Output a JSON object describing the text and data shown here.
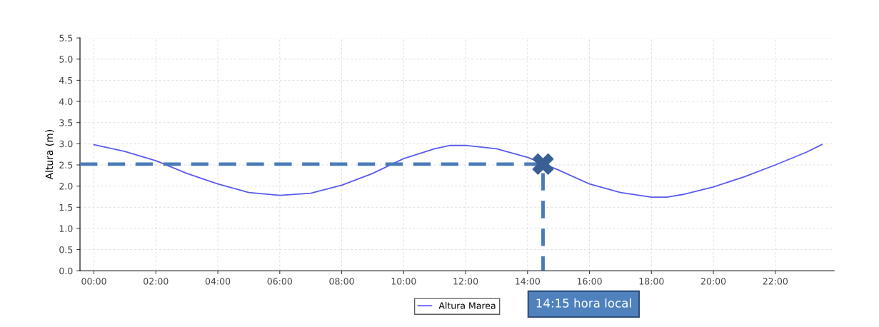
{
  "chart_data": {
    "type": "line",
    "ylabel": "Altura (m)",
    "series": [
      {
        "name": "Altura Marea",
        "color": "#5b5bee",
        "x": [
          0,
          1,
          2,
          3,
          4,
          5,
          6,
          7,
          8,
          9,
          10,
          11,
          11.5,
          12,
          13,
          14,
          15,
          16,
          17,
          18,
          18.5,
          19,
          20,
          21,
          22,
          23,
          23.5
        ],
        "values": [
          2.98,
          2.82,
          2.6,
          2.3,
          2.05,
          1.85,
          1.78,
          1.83,
          2.02,
          2.3,
          2.65,
          2.88,
          2.96,
          2.96,
          2.88,
          2.68,
          2.38,
          2.05,
          1.85,
          1.74,
          1.74,
          1.8,
          1.98,
          2.22,
          2.5,
          2.8,
          2.98
        ]
      },
      {
        "type": "line",
        "line_style": "dashed",
        "color": "#4a7ab8",
        "x": [
          -0.45,
          14.5,
          14.5
        ],
        "values": [
          2.52,
          2.52,
          0
        ]
      },
      {
        "type": "scatter",
        "marker": "cross",
        "color": "#3a5f94",
        "x": [
          14.5
        ],
        "values": [
          2.52
        ]
      }
    ],
    "xlim": [
      -0.45,
      23.9
    ],
    "ylim": [
      0,
      5.5
    ],
    "xticks": [
      {
        "value": 0,
        "label": "00:00"
      },
      {
        "value": 2,
        "label": "02:00"
      },
      {
        "value": 4,
        "label": "04:00"
      },
      {
        "value": 6,
        "label": "06:00"
      },
      {
        "value": 8,
        "label": "08:00"
      },
      {
        "value": 10,
        "label": "10:00"
      },
      {
        "value": 12,
        "label": "12:00"
      },
      {
        "value": 14,
        "label": "14:00"
      },
      {
        "value": 16,
        "label": "16:00"
      },
      {
        "value": 18,
        "label": "18:00"
      },
      {
        "value": 20,
        "label": "20:00"
      },
      {
        "value": 22,
        "label": "22:00"
      }
    ],
    "yticks": [
      {
        "value": 0,
        "label": "0.0"
      },
      {
        "value": 0.5,
        "label": "0.5"
      },
      {
        "value": 1,
        "label": "1.0"
      },
      {
        "value": 1.5,
        "label": "1.5"
      },
      {
        "value": 2,
        "label": "2.0"
      },
      {
        "value": 2.5,
        "label": "2.5"
      },
      {
        "value": 3,
        "label": "3.0"
      },
      {
        "value": 3.5,
        "label": "3.5"
      },
      {
        "value": 4,
        "label": "4.0"
      },
      {
        "value": 4.5,
        "label": "4.5"
      },
      {
        "value": 5,
        "label": "5.0"
      },
      {
        "value": 5.5,
        "label": "5.5"
      }
    ],
    "grid": true,
    "legend": "bottom",
    "annotations": [
      "14:15 hora local"
    ]
  }
}
